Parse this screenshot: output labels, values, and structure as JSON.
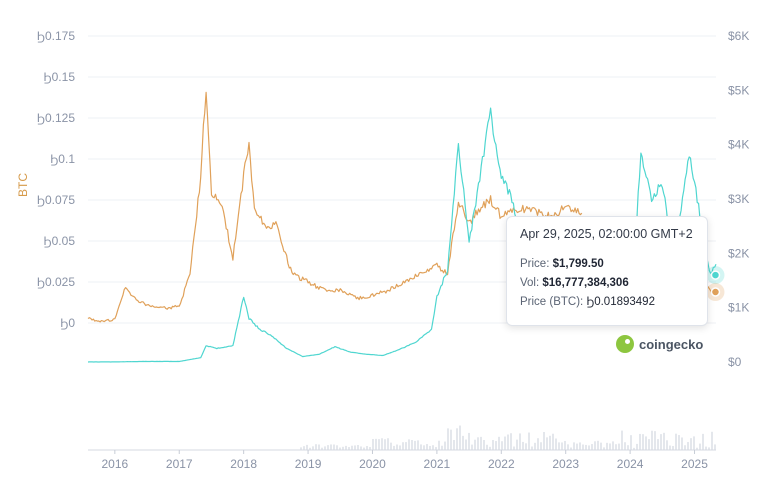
{
  "chart_data": {
    "type": "line",
    "xlabels": [
      "2016",
      "2017",
      "2018",
      "2019",
      "2020",
      "2021",
      "2022",
      "2023",
      "2024",
      "2025"
    ],
    "xrange": [
      "2015-08",
      "2025-05"
    ],
    "y_left": {
      "label": "BTC",
      "ticks": [
        "Ϧ0",
        "Ϧ0.025",
        "Ϧ0.05",
        "Ϧ0.075",
        "Ϧ0.1",
        "Ϧ0.125",
        "Ϧ0.15",
        "Ϧ0.175"
      ],
      "range": [
        0,
        0.175
      ]
    },
    "y_right": {
      "ticks": [
        "$0",
        "$1K",
        "$2K",
        "$3K",
        "$4K",
        "$5K",
        "$6K"
      ],
      "range": [
        0,
        6000
      ]
    },
    "series": [
      {
        "axis": "left",
        "color": "#e0a15a",
        "x": [
          "2015-08",
          "2015-10",
          "2016-01",
          "2016-03",
          "2016-05",
          "2016-07",
          "2016-10",
          "2017-01",
          "2017-03",
          "2017-05",
          "2017-06",
          "2017-07",
          "2017-09",
          "2017-11",
          "2018-01",
          "2018-02",
          "2018-03",
          "2018-05",
          "2018-07",
          "2018-10",
          "2019-01",
          "2019-04",
          "2019-07",
          "2019-10",
          "2020-01",
          "2020-04",
          "2020-07",
          "2020-10",
          "2021-01",
          "2021-03",
          "2021-05",
          "2021-07",
          "2021-09",
          "2021-11",
          "2022-01",
          "2022-04",
          "2022-07",
          "2022-10",
          "2023-01",
          "2023-04"
        ],
        "values": [
          0.003,
          0.001,
          0.002,
          0.022,
          0.014,
          0.011,
          0.009,
          0.01,
          0.03,
          0.09,
          0.145,
          0.08,
          0.07,
          0.04,
          0.09,
          0.11,
          0.07,
          0.06,
          0.06,
          0.03,
          0.025,
          0.02,
          0.02,
          0.015,
          0.017,
          0.02,
          0.025,
          0.03,
          0.035,
          0.03,
          0.075,
          0.06,
          0.07,
          0.075,
          0.065,
          0.07,
          0.068,
          0.065,
          0.07,
          0.067
        ]
      },
      {
        "axis": "left",
        "color": "#e0a15a",
        "x": [
          "2025-03",
          "2025-04",
          "2025-05"
        ],
        "values": [
          0.025,
          0.0189,
          0.0175
        ]
      },
      {
        "axis": "right",
        "color": "#4fd6d0",
        "x": [
          "2015-08",
          "2016-01",
          "2016-06",
          "2017-01",
          "2017-05",
          "2017-06",
          "2017-08",
          "2017-11",
          "2018-01",
          "2018-02",
          "2018-04",
          "2018-06",
          "2018-09",
          "2018-12",
          "2019-03",
          "2019-06",
          "2019-09",
          "2019-12",
          "2020-03",
          "2020-06",
          "2020-09",
          "2020-12",
          "2021-01",
          "2021-03",
          "2021-05",
          "2021-07",
          "2021-09",
          "2021-11",
          "2022-01",
          "2022-03",
          "2022-05",
          "2022-06",
          "2022-08"
        ],
        "values": [
          1,
          1,
          10,
          10,
          80,
          300,
          250,
          300,
          1200,
          800,
          600,
          500,
          250,
          100,
          140,
          280,
          180,
          140,
          120,
          230,
          360,
          600,
          1200,
          1700,
          4000,
          2200,
          3400,
          4600,
          3400,
          3000,
          2200,
          1100,
          1700
        ]
      },
      {
        "axis": "right",
        "color": "#4fd6d0",
        "x": [
          "2024-02",
          "2024-03",
          "2024-05",
          "2024-07",
          "2024-08",
          "2024-10",
          "2024-12",
          "2025-01",
          "2025-02",
          "2025-03",
          "2025-04",
          "2025-05"
        ],
        "values": [
          2200,
          3900,
          3000,
          3300,
          2600,
          2500,
          3800,
          3300,
          2700,
          2000,
          1600,
          1800
        ]
      }
    ],
    "tooltip": {
      "date": "Apr 29, 2025, 02:00:00 GMT+2",
      "price_label": "Price:",
      "price": "$1,799.50",
      "vol_label": "Vol:",
      "vol": "$16,777,384,306",
      "btc_label": "Price (BTC):",
      "btc": "Ϧ0.01893492"
    }
  },
  "brand": {
    "name": "coingecko"
  }
}
